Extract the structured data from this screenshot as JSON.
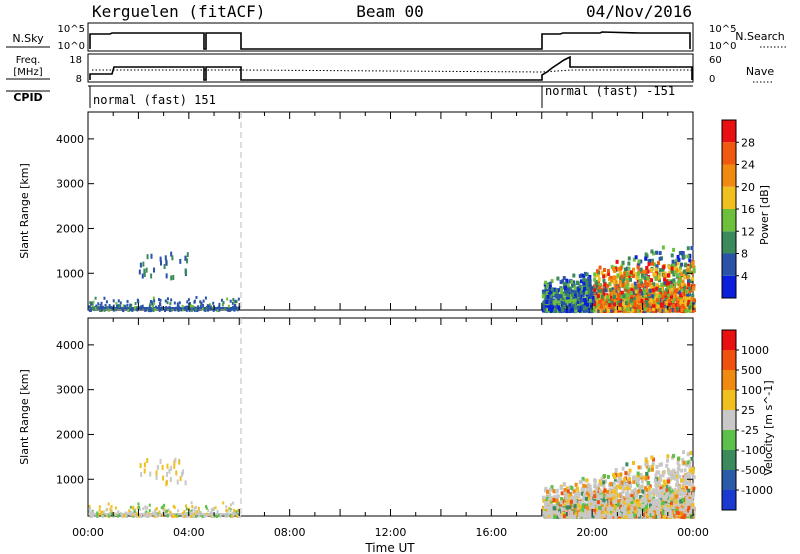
{
  "header": {
    "station": "Kerguelen (fitACF)",
    "beam": "Beam 00",
    "date": "04/Nov/2016"
  },
  "status_panels": {
    "nsky_label": "N.Sky",
    "nsky_ticks": [
      "10^5",
      "10^0"
    ],
    "nsearch_label": "N.Search",
    "nsearch_ticks": [
      "10^5",
      "10^0"
    ],
    "freq_label_line1": "Freq.",
    "freq_label_line2": "[MHz]",
    "freq_ticks": [
      "18",
      "8"
    ],
    "nave_label": "Nave",
    "nave_ticks": [
      "60",
      "0"
    ],
    "cpid_label": "CPID",
    "cpid_segments": [
      {
        "label": "normal (fast) 151",
        "start_hour": 0
      },
      {
        "label": "normal (fast) -151",
        "start_hour": 18
      }
    ]
  },
  "chart_data": [
    {
      "type": "heatmap",
      "xlabel": "",
      "ylabel": "Slant Range [km]",
      "xlim": [
        0,
        24
      ],
      "ylim": [
        180,
        4600
      ],
      "y_ticks": [
        1000,
        2000,
        3000,
        4000
      ],
      "y_tick_labels": [
        "1000",
        "2000",
        "3000",
        "4000"
      ],
      "colorbar": {
        "label": "Power [dB]",
        "tick_labels": [
          "4",
          "8",
          "12",
          "16",
          "20",
          "24",
          "28"
        ],
        "colors": [
          "#0a1edc",
          "#2a52a8",
          "#3b8a5c",
          "#6cc03c",
          "#f0c020",
          "#f08a10",
          "#f05a10",
          "#e81010"
        ]
      },
      "data_gap_hours": [
        6,
        18
      ],
      "dashed_marker_hour": 6
    },
    {
      "type": "heatmap",
      "xlabel": "Time UT",
      "ylabel": "Slant Range [km]",
      "xlim": [
        0,
        24
      ],
      "ylim": [
        180,
        4600
      ],
      "x_ticks": [
        0,
        4,
        8,
        12,
        16,
        20,
        24
      ],
      "x_tick_labels": [
        "00:00",
        "04:00",
        "08:00",
        "12:00",
        "16:00",
        "20:00",
        "00:00"
      ],
      "y_ticks": [
        1000,
        2000,
        3000,
        4000
      ],
      "y_tick_labels": [
        "1000",
        "2000",
        "3000",
        "4000"
      ],
      "colorbar": {
        "label": "Velocity [m s^-1]",
        "tick_labels": [
          "1000",
          "500",
          "100",
          "25",
          "-25",
          "-100",
          "-500",
          "-1000"
        ],
        "colors": [
          "#1a3ad0",
          "#2a5aa8",
          "#3b8a5c",
          "#5cc04a",
          "#c8c8c8",
          "#f0c020",
          "#f08a10",
          "#f05010",
          "#e81010"
        ]
      },
      "data_gap_hours": [
        6,
        18
      ],
      "dashed_marker_hour": 6
    }
  ]
}
